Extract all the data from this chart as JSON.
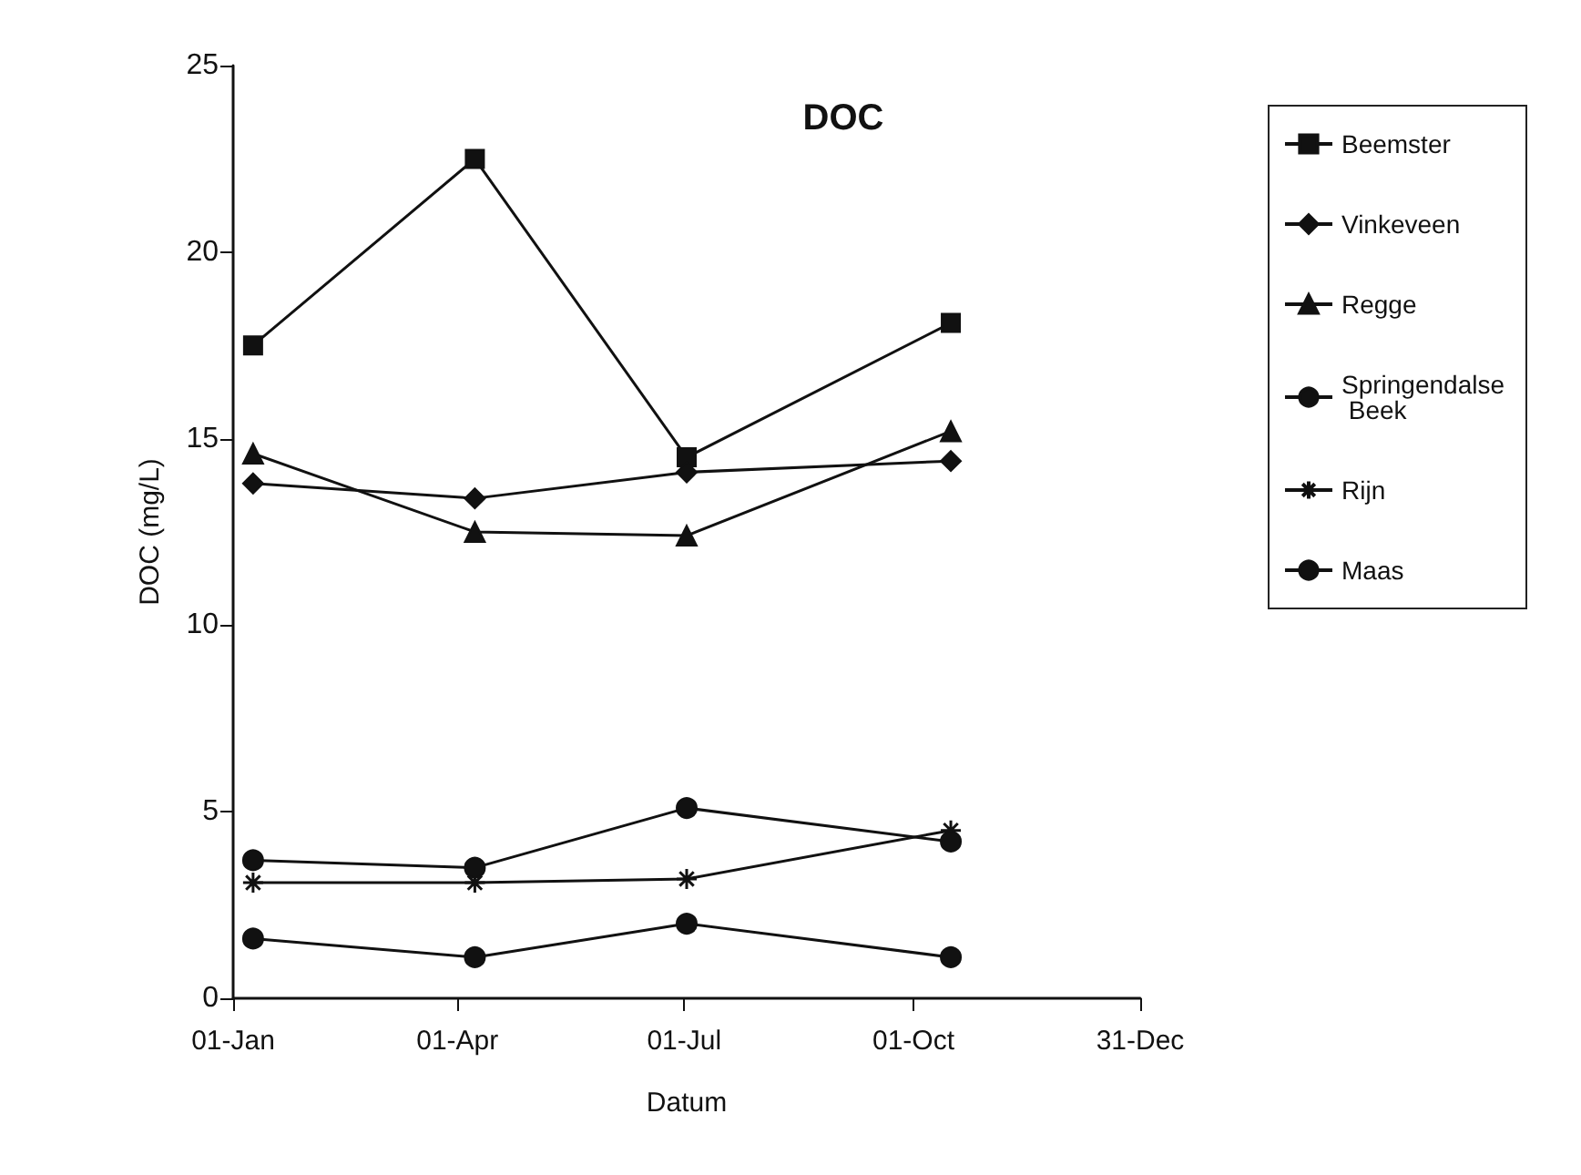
{
  "chart_data": {
    "type": "line",
    "title": "DOC",
    "xlabel": "Datum",
    "ylabel": "DOC (mg/L)",
    "x": [
      "--01-09",
      "--04-08",
      "--07-02",
      "--10-16"
    ],
    "series": [
      {
        "name": "Beemster",
        "color": "#111111",
        "marker": "square",
        "values": [
          17.5,
          22.5,
          14.5,
          18.1
        ]
      },
      {
        "name": "Vinkeveen",
        "color": "#111111",
        "marker": "diamond",
        "values": [
          13.8,
          13.4,
          14.1,
          14.4
        ]
      },
      {
        "name": "Regge",
        "color": "#111111",
        "marker": "triangle",
        "values": [
          14.6,
          12.5,
          12.4,
          15.2
        ]
      },
      {
        "name": "Springendalse Beek",
        "color": "#111111",
        "marker": "circle",
        "values": [
          1.6,
          1.1,
          2.0,
          1.1
        ]
      },
      {
        "name": "Rijn",
        "color": "#111111",
        "marker": "cross",
        "values": [
          3.1,
          3.1,
          3.2,
          4.5
        ]
      },
      {
        "name": "Maas",
        "color": "#111111",
        "marker": "circle",
        "values": [
          3.7,
          3.5,
          5.1,
          4.2
        ]
      }
    ],
    "xlim": [
      "--01-01",
      "--12-31"
    ],
    "xticks": [
      {
        "value": "--01-01",
        "label": "01-Jan"
      },
      {
        "value": "--04-01",
        "label": "01-Apr"
      },
      {
        "value": "--07-01",
        "label": "01-Jul"
      },
      {
        "value": "--10-01",
        "label": "01-Oct"
      },
      {
        "value": "--12-31",
        "label": "31-Dec"
      }
    ],
    "ylim": [
      0,
      25
    ],
    "yticks": [
      0,
      5,
      10,
      15,
      20,
      25
    ],
    "grid": false,
    "legend": "right",
    "line_style": "solid"
  }
}
